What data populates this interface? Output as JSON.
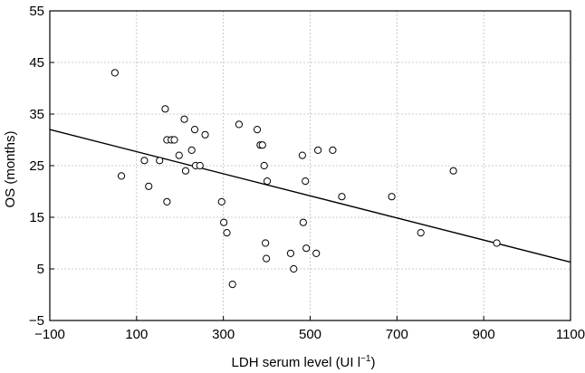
{
  "chart_data": {
    "type": "scatter",
    "title": "",
    "xlabel": "LDH serum level (UI l",
    "xlabel_sup": "−1",
    "xlabel_close": ")",
    "ylabel": "OS (months)",
    "xlim": [
      -100,
      1100
    ],
    "ylim": [
      -5,
      55
    ],
    "grid": true,
    "x_ticks": [
      -100,
      100,
      300,
      500,
      700,
      900,
      1100
    ],
    "x_tick_labels": [
      "−100",
      "100",
      "300",
      "500",
      "700",
      "900",
      "1100"
    ],
    "y_ticks": [
      -5,
      5,
      15,
      25,
      35,
      45,
      55
    ],
    "y_tick_labels": [
      "−5",
      "5",
      "15",
      "25",
      "35",
      "45",
      "55"
    ],
    "series": [
      {
        "x": [
          50,
          65,
          118,
          128,
          153,
          166,
          170,
          170,
          180,
          187,
          198,
          210,
          213,
          227,
          234,
          236,
          246,
          258,
          296,
          301,
          308,
          321,
          336,
          378,
          385,
          390,
          394,
          397,
          399,
          401,
          455,
          462,
          482,
          484,
          489,
          491,
          514,
          518,
          552,
          573,
          688,
          755,
          830,
          930
        ],
        "y": [
          43,
          23,
          26,
          21,
          26,
          36,
          18,
          30,
          30,
          30,
          27,
          34,
          24,
          28,
          32,
          25,
          25,
          31,
          18,
          14,
          12,
          2,
          33,
          32,
          29,
          29,
          25,
          10,
          7,
          22,
          8,
          5,
          27,
          14,
          22,
          9,
          8,
          28,
          28,
          19,
          19,
          12,
          24,
          10
        ]
      }
    ],
    "regression_line": {
      "x": [
        -100,
        1100
      ],
      "y": [
        32,
        6.3
      ]
    }
  }
}
